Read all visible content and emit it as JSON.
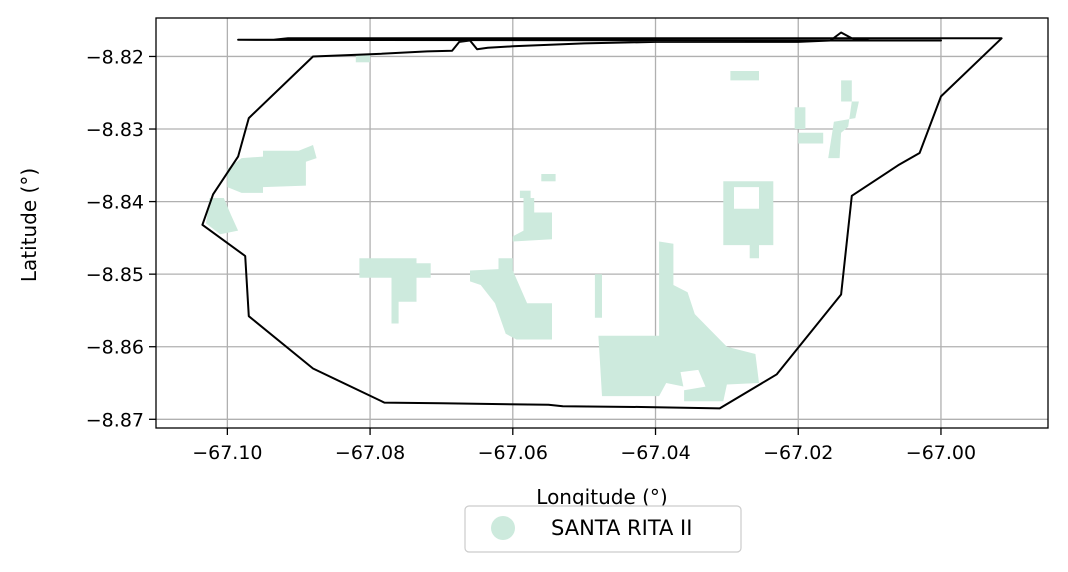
{
  "chart_data": {
    "type": "map",
    "xlabel": "Longitude (°)",
    "ylabel": "Latitude (°)",
    "xlim": [
      -67.11,
      -66.985
    ],
    "ylim": [
      -8.8712,
      -8.8147
    ],
    "xticks": [
      -67.1,
      -67.08,
      -67.06,
      -67.04,
      -67.02,
      -67.0
    ],
    "xtick_labels": [
      "−67.10",
      "−67.08",
      "−67.06",
      "−67.04",
      "−67.02",
      "−67.00"
    ],
    "yticks": [
      -8.82,
      -8.83,
      -8.84,
      -8.85,
      -8.86,
      -8.87
    ],
    "ytick_labels": [
      "−8.82",
      "−8.83",
      "−8.84",
      "−8.85",
      "−8.86",
      "−8.87"
    ],
    "grid": true,
    "legend_placement": "bottom-center",
    "series": [
      {
        "name": "SANTA RITA II",
        "kind": "patch",
        "color": "#cdeadd"
      }
    ],
    "boundary": [
      [
        -67.0915,
        -8.8175
      ],
      [
        -67.0935,
        -8.8177
      ],
      [
        -67.0965,
        -8.8177
      ],
      [
        -67.0985,
        -8.8177
      ],
      [
        -67.0,
        -8.8178
      ],
      [
        -67.01,
        -8.8178
      ],
      [
        -67.0125,
        -8.8175
      ],
      [
        -67.014,
        -8.8167
      ],
      [
        -67.0155,
        -8.8178
      ],
      [
        -67.02,
        -8.818
      ],
      [
        -67.025,
        -8.818
      ],
      [
        -67.03,
        -8.818
      ],
      [
        -67.04,
        -8.818
      ],
      [
        -67.05,
        -8.8182
      ],
      [
        -67.06,
        -8.8186
      ],
      [
        -67.0635,
        -8.8188
      ],
      [
        -67.065,
        -8.819
      ],
      [
        -67.066,
        -8.8178
      ],
      [
        -67.0675,
        -8.818
      ],
      [
        -67.0685,
        -8.8192
      ],
      [
        -67.072,
        -8.8193
      ],
      [
        -67.08,
        -8.8197
      ],
      [
        -67.088,
        -8.82
      ],
      [
        -67.097,
        -8.8285
      ],
      [
        -67.0985,
        -8.8338
      ],
      [
        -67.102,
        -8.839
      ],
      [
        -67.1035,
        -8.8432
      ],
      [
        -67.0975,
        -8.8475
      ],
      [
        -67.097,
        -8.8558
      ],
      [
        -67.088,
        -8.863
      ],
      [
        -67.078,
        -8.8677
      ],
      [
        -67.07,
        -8.8678
      ],
      [
        -67.055,
        -8.868
      ],
      [
        -67.053,
        -8.8682
      ],
      [
        -67.042,
        -8.8683
      ],
      [
        -67.031,
        -8.8685
      ],
      [
        -67.023,
        -8.8638
      ],
      [
        -67.014,
        -8.8528
      ],
      [
        -67.0125,
        -8.8392
      ],
      [
        -67.006,
        -8.835
      ],
      [
        -67.003,
        -8.8333
      ],
      [
        -67.0,
        -8.8255
      ],
      [
        -66.9915,
        -8.8175
      ]
    ],
    "patches": [
      [
        [
          -67.098,
          -8.834
        ],
        [
          -67.095,
          -8.8338
        ],
        [
          -67.095,
          -8.833
        ],
        [
          -67.09,
          -8.833
        ],
        [
          -67.088,
          -8.8322
        ],
        [
          -67.0875,
          -8.834
        ],
        [
          -67.089,
          -8.8345
        ],
        [
          -67.089,
          -8.8378
        ],
        [
          -67.095,
          -8.838
        ],
        [
          -67.095,
          -8.8388
        ],
        [
          -67.098,
          -8.8388
        ],
        [
          -67.1,
          -8.838
        ],
        [
          -67.1,
          -8.8355
        ]
      ],
      [
        [
          -67.1025,
          -8.8395
        ],
        [
          -67.1005,
          -8.8395
        ],
        [
          -67.0995,
          -8.8418
        ],
        [
          -67.0985,
          -8.844
        ],
        [
          -67.101,
          -8.8445
        ],
        [
          -67.103,
          -8.843
        ]
      ],
      [
        [
          -67.082,
          -8.8198
        ],
        [
          -67.08,
          -8.8198
        ],
        [
          -67.08,
          -8.8208
        ],
        [
          -67.082,
          -8.8208
        ]
      ],
      [
        [
          -67.0815,
          -8.8478
        ],
        [
          -67.0735,
          -8.8478
        ],
        [
          -67.0735,
          -8.8485
        ],
        [
          -67.0715,
          -8.8485
        ],
        [
          -67.0715,
          -8.8505
        ],
        [
          -67.0735,
          -8.8505
        ],
        [
          -67.0735,
          -8.8538
        ],
        [
          -67.076,
          -8.8538
        ],
        [
          -67.076,
          -8.8568
        ],
        [
          -67.077,
          -8.8568
        ],
        [
          -67.077,
          -8.8505
        ],
        [
          -67.0815,
          -8.8505
        ]
      ],
      [
        [
          -67.066,
          -8.8495
        ],
        [
          -67.062,
          -8.8493
        ],
        [
          -67.062,
          -8.8478
        ],
        [
          -67.06,
          -8.8478
        ],
        [
          -67.06,
          -8.8448
        ],
        [
          -67.0585,
          -8.844
        ],
        [
          -67.0585,
          -8.8415
        ],
        [
          -67.0545,
          -8.8415
        ],
        [
          -67.0545,
          -8.8452
        ],
        [
          -67.06,
          -8.8455
        ],
        [
          -67.06,
          -8.8495
        ],
        [
          -67.058,
          -8.854
        ],
        [
          -67.0545,
          -8.854
        ],
        [
          -67.0545,
          -8.859
        ],
        [
          -67.0595,
          -8.859
        ],
        [
          -67.061,
          -8.8582
        ],
        [
          -67.0625,
          -8.854
        ],
        [
          -67.0645,
          -8.8515
        ],
        [
          -67.066,
          -8.851
        ]
      ],
      [
        [
          -67.059,
          -8.8385
        ],
        [
          -67.0575,
          -8.8385
        ],
        [
          -67.0575,
          -8.8395
        ],
        [
          -67.059,
          -8.8395
        ]
      ],
      [
        [
          -67.0585,
          -8.8395
        ],
        [
          -67.057,
          -8.8395
        ],
        [
          -67.057,
          -8.842
        ],
        [
          -67.0585,
          -8.842
        ]
      ],
      [
        [
          -67.056,
          -8.8362
        ],
        [
          -67.054,
          -8.8362
        ],
        [
          -67.054,
          -8.8372
        ],
        [
          -67.056,
          -8.8372
        ]
      ],
      [
        [
          -67.0395,
          -8.8455
        ],
        [
          -67.0375,
          -8.8458
        ],
        [
          -67.0375,
          -8.8515
        ],
        [
          -67.0355,
          -8.8525
        ],
        [
          -67.0345,
          -8.8555
        ],
        [
          -67.032,
          -8.858
        ],
        [
          -67.03,
          -8.86
        ],
        [
          -67.026,
          -8.861
        ],
        [
          -67.0255,
          -8.865
        ],
        [
          -67.03,
          -8.8652
        ],
        [
          -67.0305,
          -8.8675
        ],
        [
          -67.036,
          -8.8675
        ],
        [
          -67.036,
          -8.8655
        ],
        [
          -67.0385,
          -8.865
        ],
        [
          -67.0395,
          -8.8668
        ],
        [
          -67.0475,
          -8.8668
        ],
        [
          -67.048,
          -8.8585
        ],
        [
          -67.0395,
          -8.8585
        ]
      ],
      [
        [
          -67.0485,
          -8.85
        ],
        [
          -67.0475,
          -8.85
        ],
        [
          -67.0475,
          -8.856
        ],
        [
          -67.0485,
          -8.856
        ]
      ],
      [
        [
          -67.0305,
          -8.8372
        ],
        [
          -67.0235,
          -8.8372
        ],
        [
          -67.0235,
          -8.846
        ],
        [
          -67.0255,
          -8.846
        ],
        [
          -67.0255,
          -8.8478
        ],
        [
          -67.0268,
          -8.8478
        ],
        [
          -67.0268,
          -8.846
        ],
        [
          -67.0305,
          -8.846
        ]
      ],
      [
        [
          -67.0295,
          -8.822
        ],
        [
          -67.0255,
          -8.822
        ],
        [
          -67.0255,
          -8.8233
        ],
        [
          -67.0295,
          -8.8233
        ]
      ],
      [
        [
          -67.0205,
          -8.827
        ],
        [
          -67.019,
          -8.827
        ],
        [
          -67.019,
          -8.83
        ],
        [
          -67.0205,
          -8.83
        ]
      ],
      [
        [
          -67.014,
          -8.8233
        ],
        [
          -67.0125,
          -8.8233
        ],
        [
          -67.0125,
          -8.8262
        ],
        [
          -67.0115,
          -8.8262
        ],
        [
          -67.012,
          -8.8285
        ],
        [
          -67.015,
          -8.829
        ],
        [
          -67.0158,
          -8.834
        ],
        [
          -67.0142,
          -8.834
        ],
        [
          -67.014,
          -8.8305
        ],
        [
          -67.013,
          -8.8297
        ],
        [
          -67.0125,
          -8.8262
        ],
        [
          -67.014,
          -8.8262
        ]
      ],
      [
        [
          -67.02,
          -8.8305
        ],
        [
          -67.0165,
          -8.8305
        ],
        [
          -67.0165,
          -8.832
        ],
        [
          -67.02,
          -8.832
        ]
      ]
    ],
    "holes": [
      [
        [
          -67.029,
          -8.838
        ],
        [
          -67.0255,
          -8.838
        ],
        [
          -67.0255,
          -8.841
        ],
        [
          -67.029,
          -8.841
        ]
      ],
      [
        [
          -67.0365,
          -8.8635
        ],
        [
          -67.034,
          -8.8632
        ],
        [
          -67.033,
          -8.8655
        ],
        [
          -67.036,
          -8.866
        ]
      ]
    ]
  }
}
